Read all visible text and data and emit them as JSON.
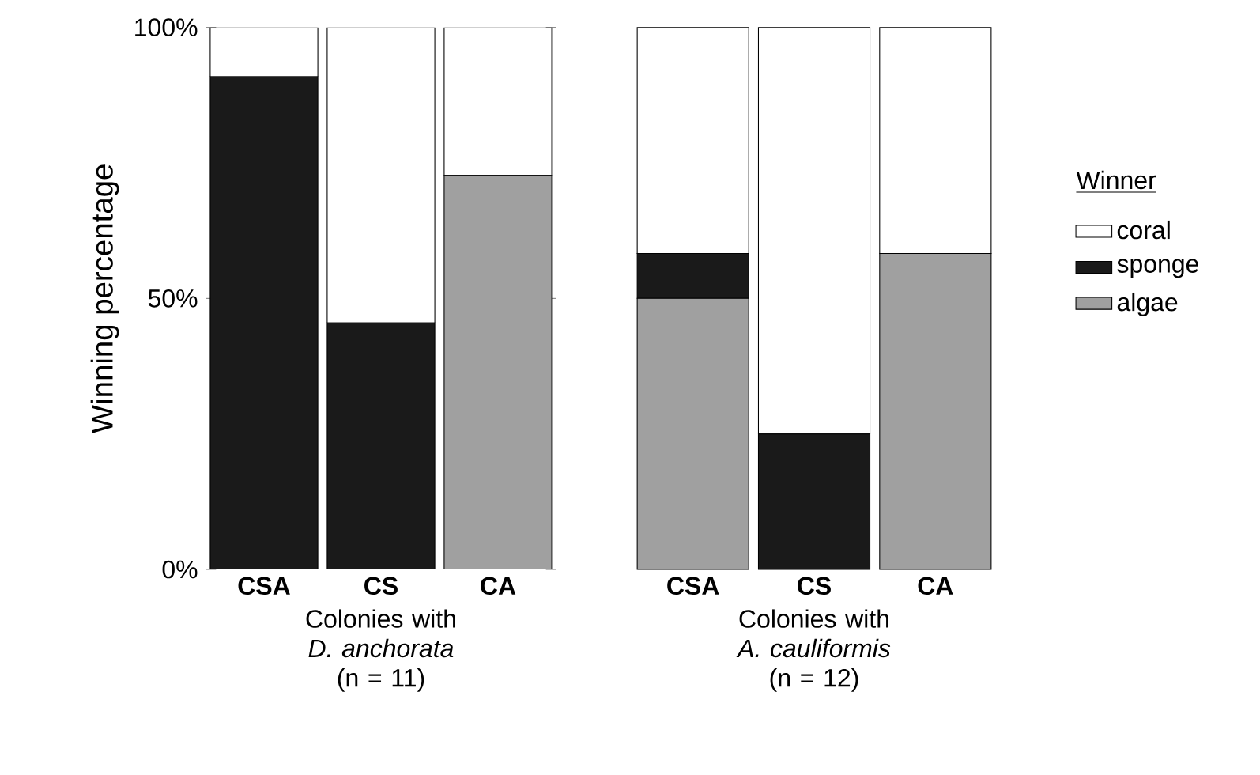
{
  "chart_data": [
    {
      "type": "bar",
      "stacked": true,
      "categories": [
        "CSA",
        "CS",
        "CA"
      ],
      "xlabel": "Colonies with *D. anchorata* (n = 11)",
      "ylabel": "Winning percentage",
      "ylim": [
        0,
        100
      ],
      "yticks": [
        {
          "value": 0,
          "label": "0%"
        },
        {
          "value": 50,
          "label": "50%"
        },
        {
          "value": 100,
          "label": "100%"
        }
      ],
      "series": [
        {
          "color": "#a0a0a0",
          "values": [
            0,
            0,
            72.7
          ]
        },
        {
          "color": "#1a1a1a",
          "values": [
            90.9,
            45.5,
            0
          ]
        },
        {
          "color": "#ffffff",
          "values": [
            9.1,
            54.5,
            27.3
          ]
        }
      ]
    },
    {
      "type": "bar",
      "stacked": true,
      "categories": [
        "CSA",
        "CS",
        "CA"
      ],
      "xlabel": "Colonies with *A. cauliformis* (n = 12)",
      "ylim": [
        0,
        100
      ],
      "tick_labels": "x",
      "legend": "right",
      "legend_title": "Winner",
      "series": [
        {
          "name": "algae",
          "color": "#a0a0a0",
          "values": [
            50,
            0,
            58.3
          ]
        },
        {
          "name": "sponge",
          "color": "#1a1a1a",
          "values": [
            8.3,
            25,
            0
          ]
        },
        {
          "name": "coral",
          "color": "#ffffff",
          "values": [
            41.7,
            75,
            41.7
          ]
        }
      ]
    }
  ]
}
